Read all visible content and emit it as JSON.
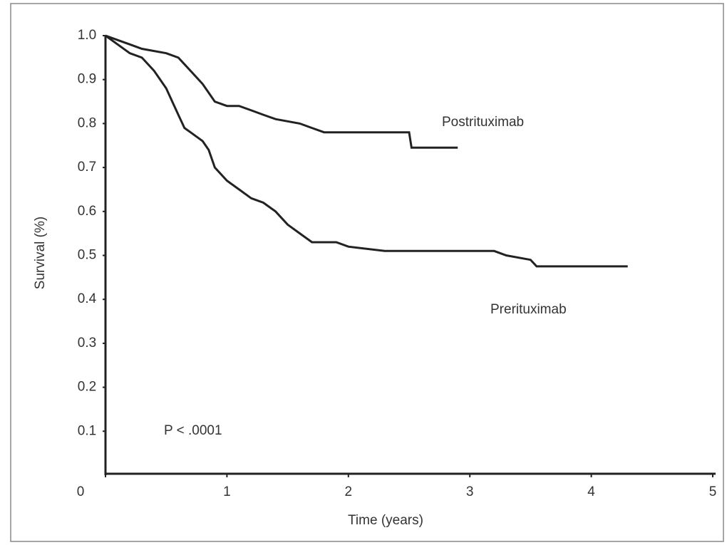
{
  "chart_data": {
    "type": "line",
    "x_label": "Time (years)",
    "y_label": "Survival (%)",
    "annotation": "P < .0001",
    "xlim": [
      0,
      5
    ],
    "xticks": [
      0,
      1,
      2,
      3,
      4,
      5
    ],
    "ylim": [
      0,
      1
    ],
    "yticks": [
      0.1,
      0.2,
      0.3,
      0.4,
      0.5,
      0.6,
      0.7,
      0.8,
      0.9,
      {
        "value": 1,
        "label": "1.0"
      }
    ],
    "series": [
      {
        "name": "Postrituximab",
        "color": "#222222",
        "x": [
          0,
          0.1,
          0.2,
          0.3,
          0.5,
          0.6,
          0.7,
          0.8,
          0.9,
          1.0,
          1.1,
          1.2,
          1.3,
          1.4,
          1.6,
          1.7,
          1.8,
          2.5,
          2.52,
          2.9
        ],
        "values": [
          1,
          0.99,
          0.98,
          0.97,
          0.96,
          0.95,
          0.92,
          0.89,
          0.85,
          0.84,
          0.84,
          0.83,
          0.82,
          0.81,
          0.8,
          0.79,
          0.78,
          0.78,
          0.745,
          0.745
        ]
      },
      {
        "name": "Prerituximab",
        "color": "#222222",
        "x": [
          0,
          0.1,
          0.2,
          0.3,
          0.4,
          0.5,
          0.55,
          0.6,
          0.65,
          0.7,
          0.8,
          0.85,
          0.9,
          1.0,
          1.1,
          1.2,
          1.3,
          1.4,
          1.5,
          1.6,
          1.7,
          1.9,
          2.0,
          2.3,
          3.2,
          3.3,
          3.5,
          3.55,
          4.3
        ],
        "values": [
          1,
          0.98,
          0.96,
          0.95,
          0.92,
          0.88,
          0.85,
          0.82,
          0.79,
          0.78,
          0.76,
          0.74,
          0.7,
          0.67,
          0.65,
          0.63,
          0.62,
          0.6,
          0.57,
          0.55,
          0.53,
          0.53,
          0.52,
          0.51,
          0.51,
          0.5,
          0.49,
          0.475,
          0.475
        ]
      }
    ]
  }
}
